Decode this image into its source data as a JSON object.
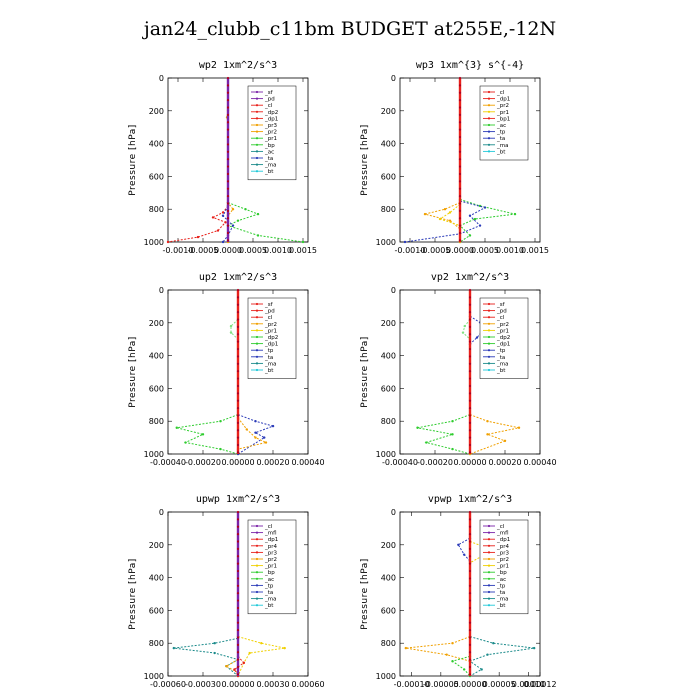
{
  "title": "jan24_clubb_c11bm  BUDGET at255E,-12N",
  "colors": {
    "red": "#e8201a",
    "purple": "#7a22a8",
    "orange": "#f0a000",
    "yellow": "#f0d000",
    "green": "#2ecc2e",
    "lgreen": "#80e080",
    "blue": "#2a3ab8",
    "teal": "#1a8a8a",
    "cyan": "#20c8d8",
    "dred": "#b00020",
    "black": "#000000"
  },
  "chart_data": [
    {
      "type": "line",
      "title": "wp2   1xm^2/s^3",
      "ylabel": "Pressure [hPa]",
      "xlim": [
        -0.0012,
        0.0016
      ],
      "xticks": [
        -0.001,
        -0.0005,
        0.0,
        0.0005,
        0.001,
        0.0015
      ],
      "xtick_labels": [
        "-0.0010",
        "-0.0005",
        "0.0000",
        "0.0005",
        "0.0010",
        "0.0015"
      ],
      "ylim": [
        0,
        1000
      ],
      "yticks": [
        0,
        200,
        400,
        600,
        800,
        1000
      ],
      "legend": [
        "_sf",
        "_pd",
        "_cl",
        "_dp2",
        "_dp1",
        "_pr3",
        "_pr2",
        "_pr1",
        "_bp",
        "_ac",
        "_ta",
        "_ma",
        "_bt"
      ],
      "legend_colors": [
        "purple",
        "purple",
        "red",
        "red",
        "red",
        "orange",
        "orange",
        "green",
        "green",
        "teal",
        "blue",
        "teal",
        "cyan"
      ],
      "series": [
        {
          "color": "green",
          "points": [
            [
              0.0,
              760
            ],
            [
              0.00035,
              800
            ],
            [
              0.0006,
              830
            ],
            [
              0.0002,
              870
            ],
            [
              0.0,
              900
            ],
            [
              0.0006,
              960
            ],
            [
              0.0015,
              1000
            ]
          ]
        },
        {
          "color": "red",
          "points": [
            [
              0.0,
              780
            ],
            [
              -0.0001,
              820
            ],
            [
              -0.0003,
              850
            ],
            [
              -5e-05,
              880
            ],
            [
              -0.0002,
              930
            ],
            [
              -0.0006,
              970
            ],
            [
              -0.0012,
              1000
            ]
          ]
        },
        {
          "color": "orange",
          "points": [
            [
              0.0,
              200
            ],
            [
              -2e-05,
              240
            ],
            [
              0.0,
              280
            ],
            [
              0.0,
              760
            ],
            [
              0.0001,
              800
            ],
            [
              0.0,
              840
            ],
            [
              0.0,
              1000
            ]
          ]
        },
        {
          "color": "blue",
          "points": [
            [
              0.0,
              780
            ],
            [
              -0.0001,
              840
            ],
            [
              0.0001,
              900
            ],
            [
              0.0,
              960
            ],
            [
              -0.0001,
              1000
            ]
          ]
        },
        {
          "color": "purple",
          "points": [
            [
              0.0,
              0
            ],
            [
              0.0,
              1000
            ]
          ]
        }
      ]
    },
    {
      "type": "line",
      "title": "wp3   1xm^{3} s^{-4}",
      "ylabel": "Pressure [hPa]",
      "xlim": [
        -0.0012,
        0.0016
      ],
      "xticks": [
        -0.001,
        -0.0005,
        0.0,
        0.0005,
        0.001,
        0.0015
      ],
      "xtick_labels": [
        "-0.0010",
        "-0.0005",
        "0.0000",
        "0.0005",
        "0.0010",
        "0.0015"
      ],
      "ylim": [
        0,
        1000
      ],
      "yticks": [
        0,
        200,
        400,
        600,
        800,
        1000
      ],
      "legend": [
        "_cl",
        "_dp1",
        "_pr2",
        "_pr1",
        "_bp1",
        "_ac",
        "_tp",
        "_ta",
        "_ma",
        "_bt"
      ],
      "legend_colors": [
        "red",
        "red",
        "orange",
        "yellow",
        "red",
        "green",
        "blue",
        "blue",
        "teal",
        "cyan"
      ],
      "series": [
        {
          "color": "green",
          "points": [
            [
              0.0,
              740
            ],
            [
              0.0004,
              780
            ],
            [
              0.0011,
              830
            ],
            [
              0.0003,
              860
            ],
            [
              0.0,
              900
            ],
            [
              0.0002,
              960
            ],
            [
              0.0,
              1000
            ]
          ]
        },
        {
          "color": "blue",
          "points": [
            [
              0.0,
              750
            ],
            [
              0.0005,
              790
            ],
            [
              0.0002,
              840
            ],
            [
              0.0004,
              900
            ],
            [
              0.0,
              950
            ],
            [
              -0.0011,
              1000
            ]
          ]
        },
        {
          "color": "orange",
          "points": [
            [
              0.0,
              760
            ],
            [
              -0.0003,
              800
            ],
            [
              -0.0007,
              830
            ],
            [
              -0.0002,
              870
            ],
            [
              0.0,
              920
            ],
            [
              0.0,
              1000
            ]
          ]
        },
        {
          "color": "yellow",
          "points": [
            [
              0.0,
              770
            ],
            [
              -0.0002,
              820
            ],
            [
              -0.0004,
              860
            ],
            [
              0.0,
              900
            ]
          ]
        },
        {
          "color": "red",
          "points": [
            [
              0.0,
              0
            ],
            [
              0.0,
              1000
            ]
          ]
        }
      ]
    },
    {
      "type": "line",
      "title": "up2   1xm^2/s^3",
      "ylabel": "Pressure [hPa]",
      "xlim": [
        -0.0004,
        0.0004
      ],
      "xticks": [
        -0.0004,
        -0.0002,
        0.0,
        0.0002,
        0.0004
      ],
      "xtick_labels": [
        "-0.00040",
        "-0.00020",
        "0.00000",
        "0.00020",
        "0.00040"
      ],
      "ylim": [
        0,
        1000
      ],
      "yticks": [
        0,
        200,
        400,
        600,
        800,
        1000
      ],
      "legend": [
        "_sf",
        "_pd",
        "_cl",
        "_pr2",
        "_pr1",
        "_dp2",
        "_dp1",
        "_tp",
        "_ta",
        "_ma",
        "_bt"
      ],
      "legend_colors": [
        "red",
        "red",
        "red",
        "orange",
        "yellow",
        "green",
        "green",
        "blue",
        "blue",
        "teal",
        "cyan"
      ],
      "series": [
        {
          "color": "lgreen",
          "points": [
            [
              0.0,
              180
            ],
            [
              -4e-05,
              220
            ],
            [
              -4e-05,
              260
            ],
            [
              0.0,
              300
            ]
          ]
        },
        {
          "color": "green",
          "points": [
            [
              0.0,
              760
            ],
            [
              -0.0001,
              800
            ],
            [
              -0.00035,
              840
            ],
            [
              -0.0002,
              880
            ],
            [
              -0.0003,
              930
            ],
            [
              -0.0001,
              970
            ],
            [
              0.0,
              1000
            ]
          ]
        },
        {
          "color": "blue",
          "points": [
            [
              0.0,
              760
            ],
            [
              0.0001,
              800
            ],
            [
              0.0002,
              830
            ],
            [
              0.0001,
              870
            ],
            [
              0.00015,
              900
            ],
            [
              0.0,
              1000
            ]
          ]
        },
        {
          "color": "orange",
          "points": [
            [
              0.0,
              780
            ],
            [
              5e-05,
              850
            ],
            [
              0.0001,
              900
            ],
            [
              0.00016,
              930
            ],
            [
              0.0,
              970
            ]
          ]
        },
        {
          "color": "red",
          "points": [
            [
              0.0,
              0
            ],
            [
              0.0,
              1000
            ]
          ]
        }
      ]
    },
    {
      "type": "line",
      "title": "vp2   1xm^2/s^3",
      "ylabel": "Pressure [hPa]",
      "xlim": [
        -0.0004,
        0.0004
      ],
      "xticks": [
        -0.0004,
        -0.0002,
        0.0,
        0.0002,
        0.0004
      ],
      "xtick_labels": [
        "-0.00040",
        "-0.00020",
        "0.00000",
        "0.00020",
        "0.00040"
      ],
      "ylim": [
        0,
        1000
      ],
      "yticks": [
        0,
        200,
        400,
        600,
        800,
        1000
      ],
      "legend": [
        "_sf",
        "_pd",
        "_cl",
        "_pr2",
        "_pr1",
        "_dp2",
        "_dp1",
        "_tp",
        "_ta",
        "_ma",
        "_bt"
      ],
      "legend_colors": [
        "red",
        "red",
        "red",
        "orange",
        "yellow",
        "green",
        "green",
        "blue",
        "blue",
        "teal",
        "cyan"
      ],
      "series": [
        {
          "color": "blue",
          "points": [
            [
              0.0,
              160
            ],
            [
              6e-05,
              200
            ],
            [
              8e-05,
              240
            ],
            [
              4e-05,
              290
            ],
            [
              0.0,
              330
            ]
          ]
        },
        {
          "color": "lgreen",
          "points": [
            [
              0.0,
              180
            ],
            [
              -3e-05,
              220
            ],
            [
              -4e-05,
              260
            ],
            [
              0.0,
              300
            ]
          ]
        },
        {
          "color": "green",
          "points": [
            [
              0.0,
              760
            ],
            [
              -0.0001,
              800
            ],
            [
              -0.0003,
              840
            ],
            [
              -0.0001,
              880
            ],
            [
              -0.00025,
              930
            ],
            [
              -0.0001,
              970
            ],
            [
              0.0,
              1000
            ]
          ]
        },
        {
          "color": "orange",
          "points": [
            [
              0.0,
              760
            ],
            [
              0.0001,
              800
            ],
            [
              0.00028,
              840
            ],
            [
              0.0001,
              880
            ],
            [
              0.0002,
              920
            ],
            [
              0.0,
              1000
            ]
          ]
        },
        {
          "color": "red",
          "points": [
            [
              0.0,
              0
            ],
            [
              0.0,
              1000
            ]
          ]
        }
      ]
    },
    {
      "type": "line",
      "title": "upwp   1xm^2/s^3",
      "ylabel": "Pressure [hPa]",
      "xlim": [
        -0.0006,
        0.0006
      ],
      "xticks": [
        -0.0006,
        -0.0003,
        0.0,
        0.0003,
        0.0006
      ],
      "xtick_labels": [
        "-0.00060",
        "-0.00030",
        "0.00000",
        "0.00030",
        "0.00060"
      ],
      "ylim": [
        0,
        1000
      ],
      "yticks": [
        0,
        200,
        400,
        600,
        800,
        1000
      ],
      "legend": [
        "_cl",
        "_mfl",
        "_dp1",
        "_pr4",
        "_pr3",
        "_pr2",
        "_pr1",
        "_bp",
        "_ac",
        "_tp",
        "_ta",
        "_ma",
        "_bt"
      ],
      "legend_colors": [
        "purple",
        "purple",
        "red",
        "red",
        "red",
        "orange",
        "yellow",
        "green",
        "green",
        "blue",
        "blue",
        "teal",
        "cyan"
      ],
      "series": [
        {
          "color": "teal",
          "points": [
            [
              0.0,
              770
            ],
            [
              -0.0002,
              800
            ],
            [
              -0.00055,
              830
            ],
            [
              -0.0002,
              860
            ],
            [
              0.0,
              900
            ],
            [
              -0.0001,
              940
            ],
            [
              0.0,
              1000
            ]
          ]
        },
        {
          "color": "yellow",
          "points": [
            [
              0.0,
              760
            ],
            [
              0.0002,
              800
            ],
            [
              0.0004,
              830
            ],
            [
              0.0001,
              860
            ],
            [
              5e-05,
              920
            ],
            [
              0.0,
              1000
            ]
          ]
        },
        {
          "color": "orange",
          "points": [
            [
              0.0,
              900
            ],
            [
              -0.0001,
              940
            ],
            [
              0.0,
              980
            ]
          ]
        },
        {
          "color": "red",
          "points": [
            [
              0.0,
              880
            ],
            [
              5e-05,
              920
            ],
            [
              -3e-05,
              960
            ],
            [
              0.0,
              1000
            ]
          ]
        },
        {
          "color": "purple",
          "points": [
            [
              0.0,
              0
            ],
            [
              0.0,
              1000
            ]
          ]
        }
      ]
    },
    {
      "type": "line",
      "title": "vpwp   1xm^2/s^3",
      "ylabel": "Pressure [hPa]",
      "xlim": [
        -0.00012,
        0.00012
      ],
      "xticks": [
        -0.0001,
        -5e-05,
        0.0,
        5e-05,
        0.0001
      ],
      "xtick_labels": [
        "-0.00010",
        "-0.00005",
        "0.00000",
        "0.00005",
        "0.00010"
      ],
      "xtick_extra": {
        "value": 0.00012,
        "label": "0.00012"
      },
      "ylim": [
        0,
        1000
      ],
      "yticks": [
        0,
        200,
        400,
        600,
        800,
        1000
      ],
      "legend": [
        "_cl",
        "_mfl",
        "_dp1",
        "_pr4",
        "_pr3",
        "_pr2",
        "_pr1",
        "_bp",
        "_ac",
        "_tp",
        "_ta",
        "_ma",
        "_bt"
      ],
      "legend_colors": [
        "purple",
        "purple",
        "red",
        "red",
        "red",
        "orange",
        "yellow",
        "green",
        "green",
        "blue",
        "blue",
        "teal",
        "cyan"
      ],
      "series": [
        {
          "color": "blue",
          "points": [
            [
              0.0,
              160
            ],
            [
              -2e-05,
              200
            ],
            [
              -1e-05,
              260
            ],
            [
              0.0,
              300
            ]
          ]
        },
        {
          "color": "yellow",
          "points": [
            [
              0.0,
              180
            ],
            [
              3e-05,
              220
            ],
            [
              2e-05,
              270
            ],
            [
              0.0,
              310
            ]
          ]
        },
        {
          "color": "teal",
          "points": [
            [
              0.0,
              760
            ],
            [
              4e-05,
              800
            ],
            [
              0.00011,
              830
            ],
            [
              3e-05,
              870
            ],
            [
              0.0,
              910
            ],
            [
              2e-05,
              960
            ],
            [
              0.0,
              1000
            ]
          ]
        },
        {
          "color": "orange",
          "points": [
            [
              0.0,
              760
            ],
            [
              -3e-05,
              800
            ],
            [
              -0.00011,
              830
            ],
            [
              -4e-05,
              870
            ],
            [
              0.0,
              910
            ]
          ]
        },
        {
          "color": "green",
          "points": [
            [
              0.0,
              880
            ],
            [
              -3e-05,
              910
            ],
            [
              -1e-05,
              960
            ],
            [
              0.0,
              1000
            ]
          ]
        },
        {
          "color": "red",
          "points": [
            [
              0.0,
              0
            ],
            [
              0.0,
              1000
            ]
          ]
        }
      ]
    }
  ]
}
